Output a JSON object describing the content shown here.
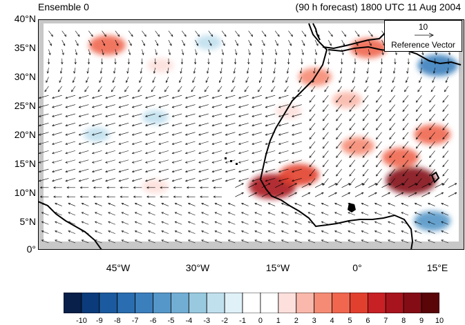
{
  "titles": {
    "left": "Ensemble 0",
    "right": "(90 h forecast) 1800 UTC 11 Aug 2004"
  },
  "axes": {
    "lat_labels": [
      "40°N",
      "35°N",
      "30°N",
      "25°N",
      "20°N",
      "15°N",
      "10°N",
      "5°N",
      "0°"
    ],
    "lon_labels": [
      "45°W",
      "30°W",
      "15°W",
      "0°",
      "15°E"
    ],
    "lat_range": [
      0,
      40
    ],
    "lon_range": [
      -60,
      20
    ]
  },
  "reference_vector": {
    "magnitude": "10",
    "label": "Reference Vector"
  },
  "colorbar": {
    "labels": [
      "-10",
      "-9",
      "-8",
      "-7",
      "-6",
      "-5",
      "-4",
      "-3",
      "-2",
      "-1",
      "0",
      "1",
      "2",
      "3",
      "4",
      "5",
      "6",
      "7",
      "8",
      "9",
      "10"
    ],
    "colors": [
      "#08204a",
      "#0b3b7a",
      "#1b5a9e",
      "#2a6db0",
      "#3b7fbd",
      "#5597c8",
      "#72aed4",
      "#98c9df",
      "#c0e0ee",
      "#e0f1f8",
      "#ffffff",
      "#ffffff",
      "#fde0dc",
      "#f9b8ab",
      "#f58b74",
      "#f0664f",
      "#e2402f",
      "#c72025",
      "#a8141d",
      "#840d15",
      "#5a0508"
    ]
  },
  "map": {
    "land_color": "#c8c8c8",
    "ocean_color": "#ffffff",
    "coast_color": "#000000",
    "vector_color": "#000000",
    "anomaly_features": [
      {
        "name": "anomaly-iberia-north",
        "lon": -47,
        "lat": 35.5,
        "value": 5
      },
      {
        "name": "anomaly-atlantic-30n",
        "lon": -37,
        "lat": 32,
        "value": 2
      },
      {
        "name": "anomaly-morocco-coast",
        "lon": -8,
        "lat": 30,
        "value": 4
      },
      {
        "name": "anomaly-algeria",
        "lon": 2,
        "lat": 35,
        "value": 5
      },
      {
        "name": "anomaly-libya",
        "lon": 15,
        "lat": 32,
        "value": -6
      },
      {
        "name": "anomaly-sahara-north",
        "lon": -2,
        "lat": 26,
        "value": 3
      },
      {
        "name": "anomaly-sahara-central",
        "lon": 0,
        "lat": 18,
        "value": 4
      },
      {
        "name": "anomaly-niger",
        "lon": 8,
        "lat": 16,
        "value": 5
      },
      {
        "name": "anomaly-chad",
        "lon": 14,
        "lat": 20,
        "value": 5
      },
      {
        "name": "anomaly-nigeria",
        "lon": 10,
        "lat": 12,
        "value": 9
      },
      {
        "name": "anomaly-senegal",
        "lon": -16,
        "lat": 11,
        "value": 8
      },
      {
        "name": "anomaly-mali",
        "lon": -11,
        "lat": 13,
        "value": 6
      },
      {
        "name": "anomaly-atlantic-10n",
        "lon": -38,
        "lat": 11,
        "value": 2
      },
      {
        "name": "anomaly-atlantic-25n",
        "lon": -38,
        "lat": 23,
        "value": -2
      },
      {
        "name": "anomaly-gulf-guinea",
        "lon": 14,
        "lat": 5,
        "value": -5
      },
      {
        "name": "anomaly-atlantic-35n",
        "lon": -28,
        "lat": 36,
        "value": -2
      },
      {
        "name": "anomaly-atlantic-18n",
        "lon": -49,
        "lat": 20,
        "value": -2
      },
      {
        "name": "anomaly-sahara-west",
        "lon": -13,
        "lat": 24,
        "value": 2
      }
    ]
  }
}
